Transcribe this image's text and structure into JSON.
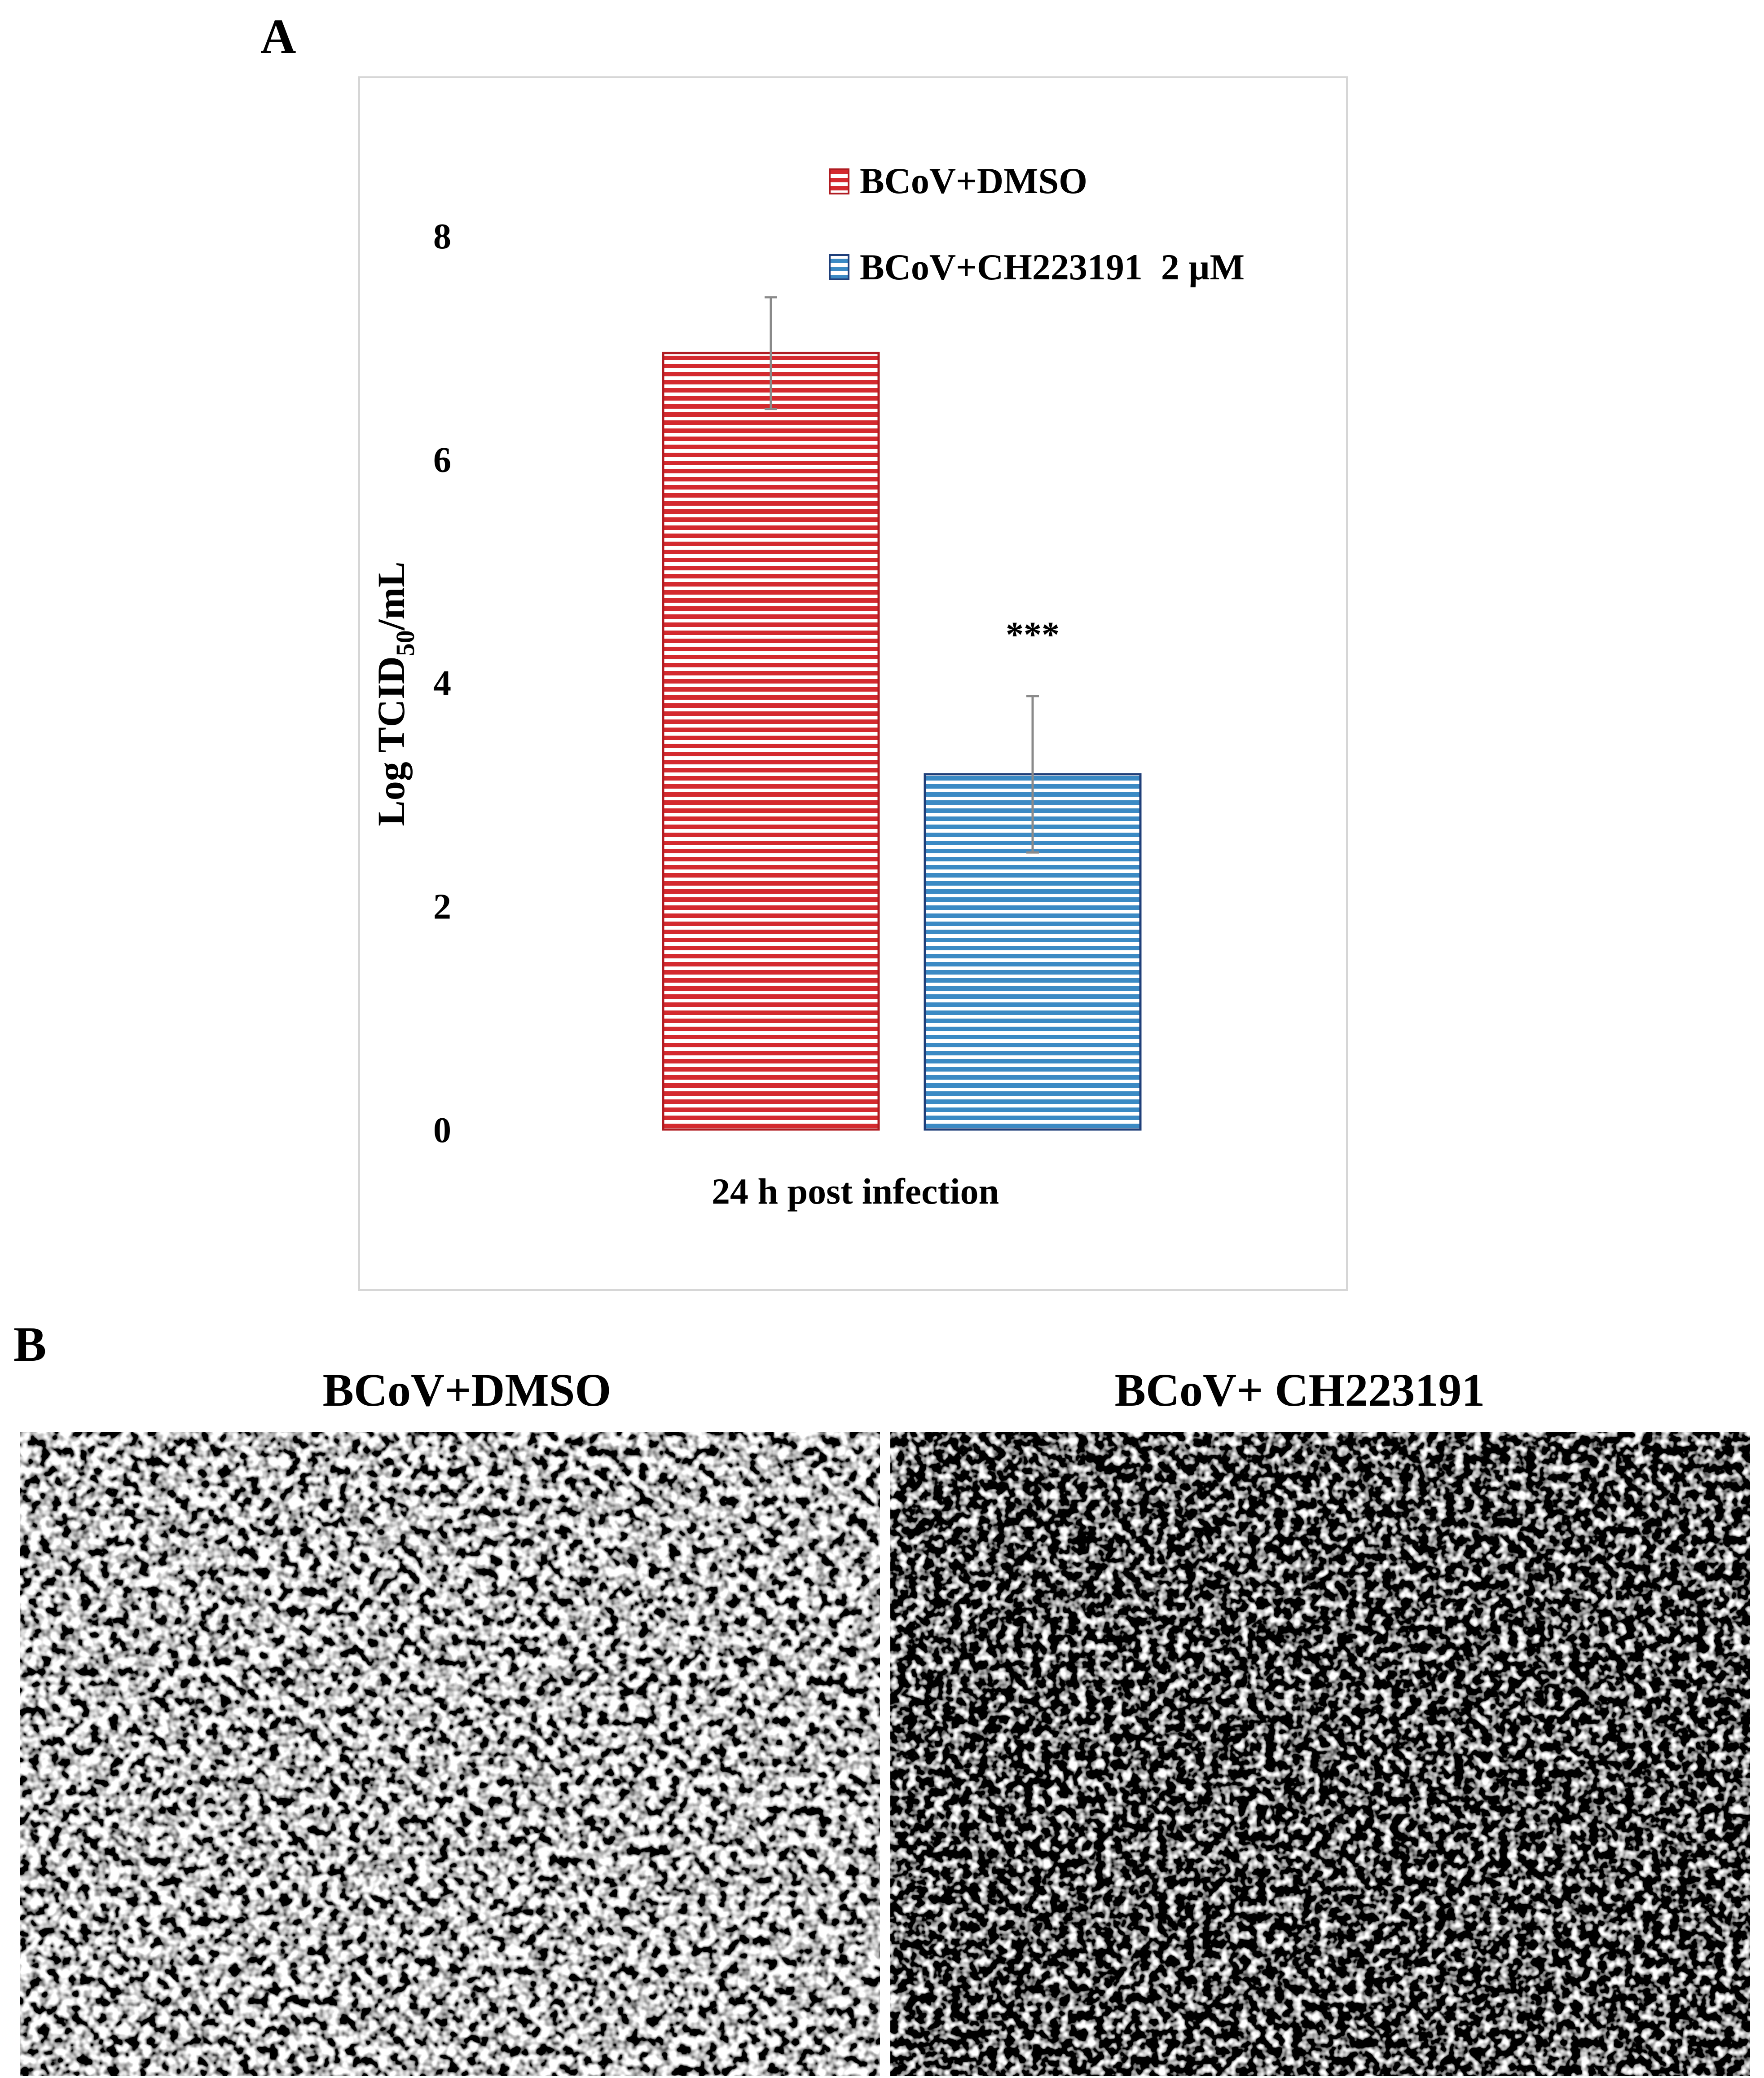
{
  "panel_a": {
    "letter": "A"
  },
  "panel_b": {
    "letter": "B"
  },
  "chart_data": {
    "type": "bar",
    "categories": [
      "24 h post infection"
    ],
    "xlabel": "24 h post infection",
    "ylabel": "Log TCID",
    "ylabel_sub": "50",
    "ylabel_suffix": "/mL",
    "ylim": [
      0,
      8
    ],
    "yticks": [
      0,
      2,
      4,
      6,
      8
    ],
    "legend_position": "top-right",
    "grid": false,
    "series": [
      {
        "name": "BCoV+DMSO",
        "values": [
          6.95
        ],
        "error": [
          0.5
        ],
        "color": "#d42a2f",
        "edge": "#b01c22",
        "pattern": "horizontal-stripes"
      },
      {
        "name": "BCoV+CH223191  2 µM",
        "values": [
          3.18
        ],
        "error": [
          0.7
        ],
        "color": "#3b8ac4",
        "edge": "#1f3f7a",
        "pattern": "horizontal-stripes"
      }
    ],
    "annotations": [
      {
        "series": 1,
        "text": "***"
      }
    ]
  },
  "micrographs": [
    {
      "title": "BCoV+DMSO"
    },
    {
      "title": "BCoV+ CH223191"
    }
  ]
}
